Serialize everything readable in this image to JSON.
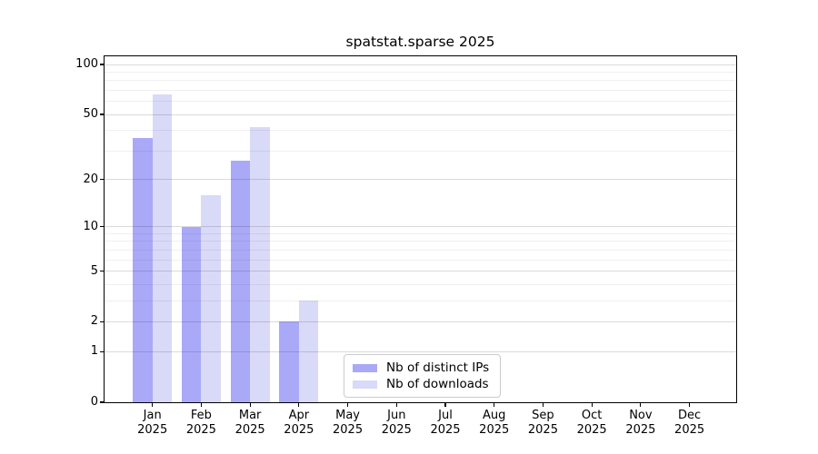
{
  "title": "spatstat.sparse 2025",
  "chart_data": {
    "type": "bar",
    "title": "spatstat.sparse 2025",
    "categories": [
      "Jan",
      "Feb",
      "Mar",
      "Apr",
      "May",
      "Jun",
      "Jul",
      "Aug",
      "Sep",
      "Oct",
      "Nov",
      "Dec"
    ],
    "x_year_label": "2025",
    "series": [
      {
        "name": "Nb of distinct IPs",
        "color": "#a9a9f7",
        "values": [
          36,
          10,
          26,
          2,
          0,
          0,
          0,
          0,
          0,
          0,
          0,
          0
        ]
      },
      {
        "name": "Nb of downloads",
        "color": "#d9d9f8",
        "values": [
          66,
          16,
          42,
          3,
          0,
          0,
          0,
          0,
          0,
          0,
          0,
          0
        ]
      }
    ],
    "y_scale": "log1p",
    "ylim": [
      0,
      100
    ],
    "y_ticks_major": [
      0,
      1,
      2,
      5,
      10,
      20,
      50,
      100
    ],
    "y_ticks_minor": [
      3,
      4,
      6,
      7,
      8,
      9,
      30,
      40,
      60,
      70,
      80,
      90
    ],
    "grid": true,
    "legend_position": "lower-center-inside",
    "colors": {
      "spine": "#000000",
      "major_grid": "#dcdcdc",
      "minor_grid": "#efefef",
      "background": "#ffffff"
    }
  }
}
